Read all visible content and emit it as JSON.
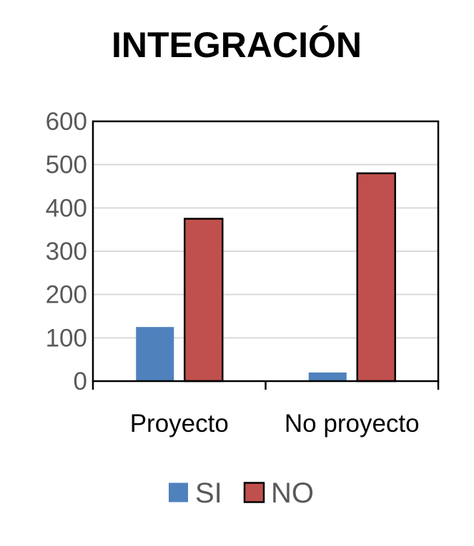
{
  "chart_data": {
    "type": "bar",
    "title": "INTEGRACIÓN",
    "xlabel": "",
    "ylabel": "",
    "categories": [
      "Proyecto",
      "No proyecto"
    ],
    "series": [
      {
        "name": "SI",
        "values": [
          125,
          20
        ],
        "color": "#4F81BD"
      },
      {
        "name": "NO",
        "values": [
          375,
          480
        ],
        "color": "#C0504D"
      }
    ],
    "ylim": [
      0,
      600
    ],
    "yticks": [
      0,
      100,
      200,
      300,
      400,
      500,
      600
    ],
    "grid": true,
    "legend_position": "bottom"
  }
}
